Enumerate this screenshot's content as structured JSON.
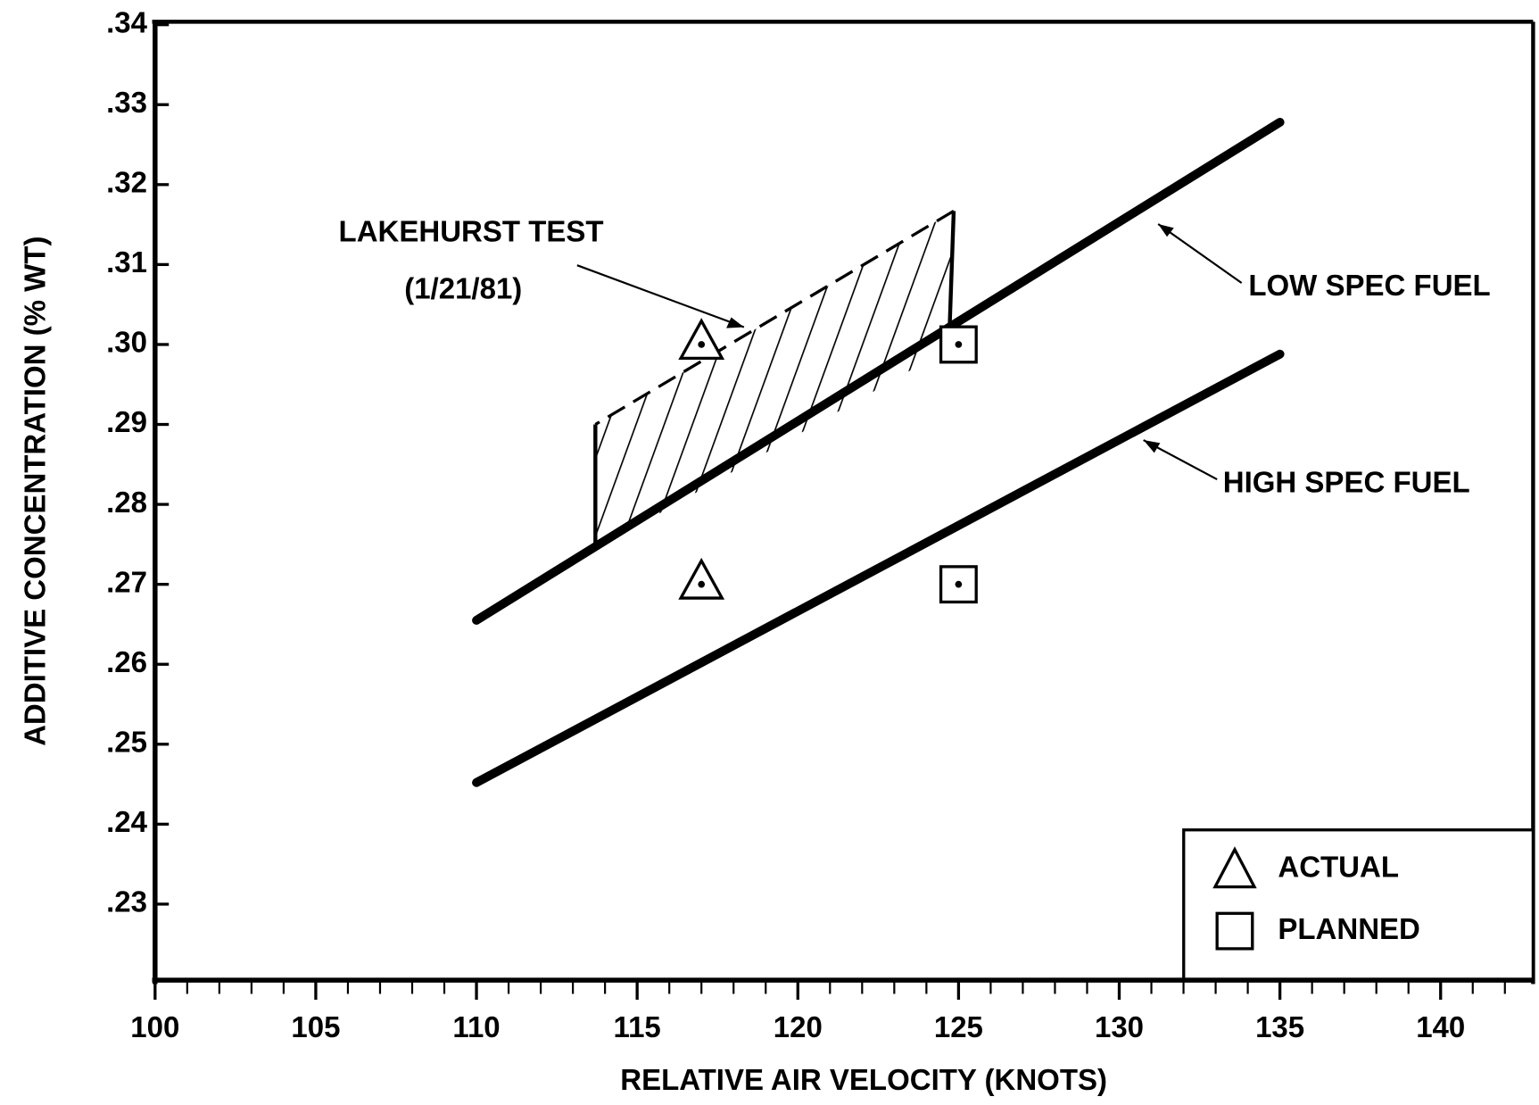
{
  "chart_data": {
    "type": "line",
    "xlabel": "RELATIVE AIR VELOCITY (KNOTS)",
    "ylabel": "ADDITIVE CONCENTRATION (% WT)",
    "xlim": [
      100,
      143
    ],
    "ylim": [
      0.22,
      0.34
    ],
    "xticks": [
      100,
      105,
      110,
      115,
      120,
      125,
      130,
      135,
      140
    ],
    "xminorticks": [
      101,
      102,
      103,
      104,
      106,
      107,
      108,
      109,
      111,
      112,
      113,
      114,
      116,
      117,
      118,
      119,
      121,
      122,
      123,
      124,
      126,
      127,
      128,
      129,
      131,
      132,
      133,
      134,
      136,
      137,
      138,
      139,
      141,
      142
    ],
    "yticks": [
      {
        "value": 0.23,
        "label": ".23"
      },
      {
        "value": 0.24,
        "label": ".24"
      },
      {
        "value": 0.25,
        "label": ".25"
      },
      {
        "value": 0.26,
        "label": ".26"
      },
      {
        "value": 0.27,
        "label": ".27"
      },
      {
        "value": 0.28,
        "label": ".28"
      },
      {
        "value": 0.29,
        "label": ".29"
      },
      {
        "value": 0.3,
        "label": ".30"
      },
      {
        "value": 0.31,
        "label": ".31"
      },
      {
        "value": 0.32,
        "label": ".32"
      },
      {
        "value": 0.33,
        "label": ".33"
      },
      {
        "value": 0.34,
        "label": ".34"
      }
    ],
    "series": [
      {
        "name": "LOW SPEC FUEL",
        "color": "#000000",
        "x": [
          110,
          135
        ],
        "values": [
          0.2655,
          0.3278
        ]
      },
      {
        "name": "HIGH SPEC FUEL",
        "color": "#000000",
        "x": [
          110,
          135
        ],
        "values": [
          0.2452,
          0.2988
        ]
      }
    ],
    "points": [
      {
        "name": "ACTUAL",
        "marker": "triangle",
        "x": [
          117,
          117
        ],
        "values": [
          0.3,
          0.27
        ]
      },
      {
        "name": "PLANNED",
        "marker": "square",
        "x": [
          125,
          125
        ],
        "values": [
          0.3,
          0.27
        ]
      }
    ],
    "region": {
      "name": "LAKEHURST TEST",
      "subtitle": "(1/21/81)",
      "x": [
        113.7,
        124.7,
        124.85,
        113.7
      ],
      "values": [
        0.2743,
        0.2995,
        0.3167,
        0.29
      ]
    }
  }
}
